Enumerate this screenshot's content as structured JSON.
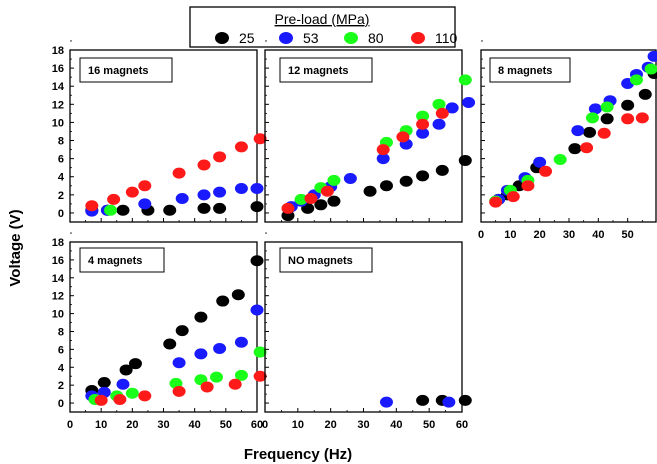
{
  "legend": {
    "title": "Pre-load (MPa)",
    "entries": [
      {
        "label": "25",
        "color": "#000000"
      },
      {
        "label": "53",
        "color": "#1a1aff"
      },
      {
        "label": "80",
        "color": "#1aff1a"
      },
      {
        "label": "110",
        "color": "#ff1a1a"
      }
    ]
  },
  "chart_data": {
    "type": "scatter",
    "xlabel": "Frequency (Hz)",
    "ylabel": "Voltage (V)",
    "xlim": [
      0,
      60
    ],
    "ylim": [
      -1,
      18
    ],
    "x_ticks": [
      "0",
      "10",
      "20",
      "30",
      "40",
      "50",
      "60"
    ],
    "y_ticks": [
      "0",
      "2",
      "4",
      "6",
      "8",
      "10",
      "12",
      "14",
      "16",
      "18"
    ],
    "panels": [
      {
        "label": "16 magnets",
        "series": [
          {
            "name": "25",
            "x": [
              7,
              12,
              17,
              25,
              32,
              43,
              48,
              60
            ],
            "y": [
              0.3,
              0.3,
              0.3,
              0.3,
              0.3,
              0.5,
              0.5,
              0.7
            ]
          },
          {
            "name": "53",
            "x": [
              7,
              12,
              24,
              36,
              43,
              48,
              55,
              60
            ],
            "y": [
              0.2,
              0.3,
              1.0,
              1.6,
              2.0,
              2.3,
              2.7,
              2.7
            ]
          },
          {
            "name": "80",
            "x": [
              13
            ],
            "y": [
              0.3
            ]
          },
          {
            "name": "110",
            "x": [
              7,
              14,
              20,
              24,
              35,
              43,
              48,
              55,
              61
            ],
            "y": [
              0.8,
              1.5,
              2.3,
              3.0,
              4.4,
              5.3,
              6.2,
              7.3,
              8.2
            ]
          }
        ]
      },
      {
        "label": "12 magnets",
        "series": [
          {
            "name": "25",
            "x": [
              7,
              13,
              17,
              21,
              32,
              37,
              43,
              48,
              54,
              61
            ],
            "y": [
              -0.3,
              0.5,
              0.9,
              1.3,
              2.4,
              3.0,
              3.5,
              4.1,
              4.7,
              5.8
            ]
          },
          {
            "name": "53",
            "x": [
              8,
              11,
              15,
              20,
              26,
              36,
              43,
              48,
              53,
              57,
              62
            ],
            "y": [
              0.7,
              1.3,
              2.0,
              2.9,
              3.8,
              6.0,
              7.6,
              8.8,
              9.8,
              11.6,
              12.2
            ]
          },
          {
            "name": "80",
            "x": [
              11,
              17,
              21,
              37,
              43,
              48,
              53,
              61
            ],
            "y": [
              1.5,
              2.8,
              3.6,
              7.8,
              9.1,
              10.7,
              12.0,
              14.7
            ]
          },
          {
            "name": "110",
            "x": [
              7,
              14,
              19,
              36,
              42,
              48,
              54
            ],
            "y": [
              0.5,
              1.6,
              2.4,
              7.0,
              8.4,
              9.8,
              11.0
            ]
          }
        ]
      },
      {
        "label": "8 magnets",
        "series": [
          {
            "name": "25",
            "x": [
              6,
              9,
              13,
              19,
              32,
              37,
              43,
              50,
              56,
              59
            ],
            "y": [
              1.5,
              2.0,
              3.0,
              5.0,
              7.1,
              8.9,
              10.4,
              11.9,
              13.1,
              15.4
            ]
          },
          {
            "name": "53",
            "x": [
              6,
              9,
              15,
              20,
              33,
              39,
              44,
              50,
              53,
              57,
              59
            ],
            "y": [
              1.5,
              2.5,
              3.9,
              5.6,
              9.1,
              11.5,
              12.4,
              14.3,
              15.3,
              16.1,
              17.3
            ]
          },
          {
            "name": "80",
            "x": [
              5,
              10,
              16,
              27,
              38,
              43,
              53,
              58
            ],
            "y": [
              1.3,
              2.5,
              3.6,
              5.9,
              10.5,
              11.7,
              14.7,
              15.9
            ]
          },
          {
            "name": "110",
            "x": [
              5,
              11,
              16,
              22,
              36,
              42,
              50,
              55
            ],
            "y": [
              1.2,
              1.8,
              3.0,
              4.6,
              7.2,
              8.8,
              10.4,
              10.5
            ]
          }
        ]
      },
      {
        "label": "4 magnets",
        "series": [
          {
            "name": "25",
            "x": [
              7,
              11,
              18,
              21,
              32,
              36,
              42,
              49,
              54,
              60
            ],
            "y": [
              1.4,
              2.3,
              3.7,
              4.4,
              6.6,
              8.1,
              9.6,
              11.4,
              12.1,
              15.9
            ]
          },
          {
            "name": "53",
            "x": [
              7,
              11,
              17,
              35,
              42,
              48,
              55,
              60
            ],
            "y": [
              0.8,
              1.2,
              2.1,
              4.5,
              5.5,
              6.1,
              6.8,
              10.4
            ]
          },
          {
            "name": "80",
            "x": [
              8,
              15,
              20,
              34,
              42,
              47,
              55,
              61
            ],
            "y": [
              0.4,
              0.8,
              1.1,
              2.2,
              2.6,
              2.9,
              3.1,
              5.7
            ]
          },
          {
            "name": "110",
            "x": [
              10,
              16,
              24,
              35,
              44,
              53,
              61
            ],
            "y": [
              0.3,
              0.4,
              0.8,
              1.3,
              1.8,
              2.1,
              3.0
            ]
          }
        ]
      },
      {
        "label": "NO magnets",
        "series": [
          {
            "name": "25",
            "x": [
              48,
              54,
              61
            ],
            "y": [
              0.3,
              0.3,
              0.3
            ]
          },
          {
            "name": "53",
            "x": [
              37,
              56
            ],
            "y": [
              0.1,
              0.1
            ]
          },
          {
            "name": "80",
            "x": [],
            "y": []
          },
          {
            "name": "110",
            "x": [],
            "y": []
          }
        ]
      }
    ]
  }
}
